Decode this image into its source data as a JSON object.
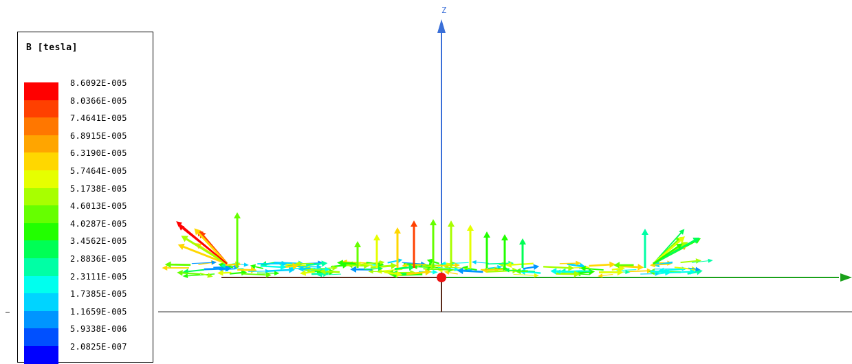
{
  "legend": {
    "title": "B [tesla]",
    "entries": [
      {
        "label": "8.6092E-005",
        "color": "#ff0000"
      },
      {
        "label": "8.0366E-005",
        "color": "#ff4000"
      },
      {
        "label": "7.4641E-005",
        "color": "#ff7700"
      },
      {
        "label": "6.8915E-005",
        "color": "#ffa500"
      },
      {
        "label": "6.3190E-005",
        "color": "#ffd700"
      },
      {
        "label": "5.7464E-005",
        "color": "#e6ff00"
      },
      {
        "label": "5.1738E-005",
        "color": "#a8ff00"
      },
      {
        "label": "4.6013E-005",
        "color": "#66ff00"
      },
      {
        "label": "4.0287E-005",
        "color": "#22ff00"
      },
      {
        "label": "3.4562E-005",
        "color": "#00ff55"
      },
      {
        "label": "2.8836E-005",
        "color": "#00ffa5"
      },
      {
        "label": "2.3111E-005",
        "color": "#00ffee"
      },
      {
        "label": "1.7385E-005",
        "color": "#00d4ff"
      },
      {
        "label": "1.1659E-005",
        "color": "#0095ff"
      },
      {
        "label": "5.9338E-006",
        "color": "#0050ff"
      },
      {
        "label": "2.0825E-007",
        "color": "#0000ff"
      }
    ]
  },
  "axes": {
    "z_label": "Z",
    "z_color": "#3a6fd8",
    "y_color": "#19a019",
    "origin_color": "#ee1111",
    "ground_color": "#5a2a1a"
  }
}
